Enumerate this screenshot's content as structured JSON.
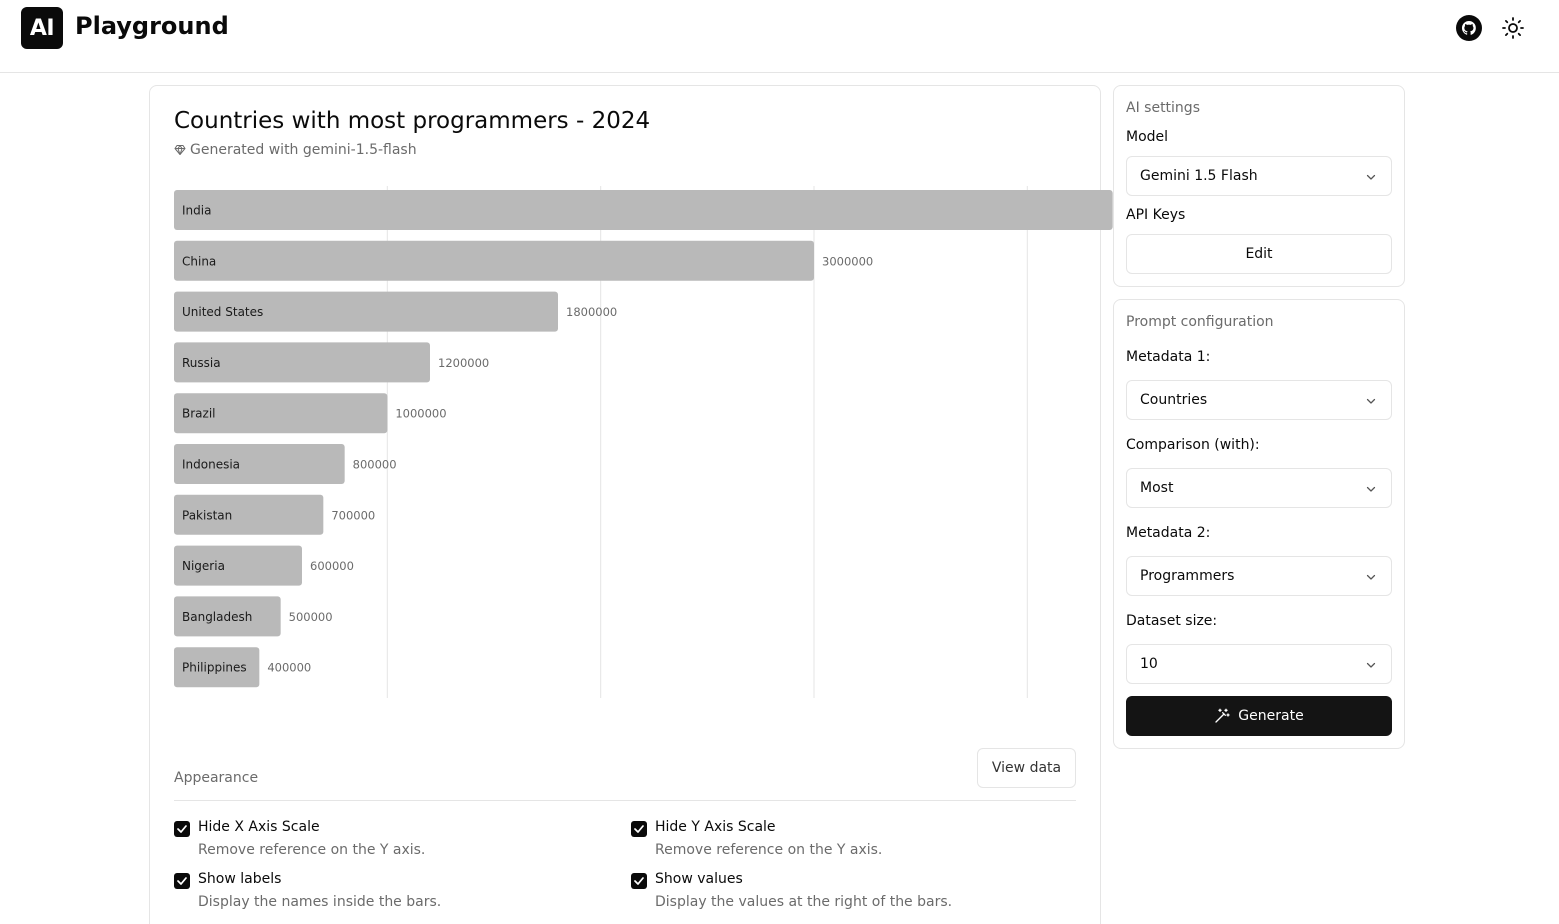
{
  "header": {
    "logo_text": "AI",
    "app_title": "Playground"
  },
  "chart_card": {
    "title": "Countries with most programmers - 2024",
    "subtitle": "Generated with gemini-1.5-flash",
    "view_data_label": "View data",
    "appearance_label": "Appearance",
    "options": [
      {
        "title": "Hide X Axis Scale",
        "desc": "Remove reference on the Y axis.",
        "checked": true
      },
      {
        "title": "Hide Y Axis Scale",
        "desc": "Remove reference on the Y axis.",
        "checked": true
      },
      {
        "title": "Show labels",
        "desc": "Display the names inside the bars.",
        "checked": true
      },
      {
        "title": "Show values",
        "desc": "Display the values at the right of the bars.",
        "checked": true
      }
    ]
  },
  "chart_data": {
    "type": "bar",
    "orientation": "horizontal",
    "title": "Countries with most programmers - 2024",
    "categories": [
      "India",
      "China",
      "United States",
      "Russia",
      "Brazil",
      "Indonesia",
      "Pakistan",
      "Nigeria",
      "Bangladesh",
      "Philippines"
    ],
    "values": [
      4400000,
      3000000,
      1800000,
      1200000,
      1000000,
      800000,
      700000,
      600000,
      500000,
      400000
    ],
    "xlim": [
      0,
      6000000
    ],
    "grid": true,
    "bar_color": "#b9b9b9"
  },
  "ai_settings": {
    "heading": "AI settings",
    "model_label": "Model",
    "model_value": "Gemini 1.5 Flash",
    "api_keys_label": "API Keys",
    "edit_label": "Edit"
  },
  "prompt_config": {
    "heading": "Prompt configuration",
    "metadata1_label": "Metadata 1:",
    "metadata1_value": "Countries",
    "comparison_label": "Comparison (with):",
    "comparison_value": "Most",
    "metadata2_label": "Metadata 2:",
    "metadata2_value": "Programmers",
    "dataset_label": "Dataset size:",
    "dataset_value": "10",
    "generate_label": "Generate"
  }
}
